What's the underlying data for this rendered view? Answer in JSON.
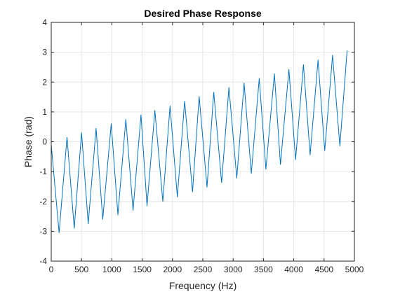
{
  "chart_data": {
    "type": "line",
    "title": "Desired Phase Response",
    "xlabel": "Frequency (Hz)",
    "ylabel": "Phase (rad)",
    "xlim": [
      0,
      5000
    ],
    "ylim": [
      -4,
      4
    ],
    "xticks": [
      0,
      500,
      1000,
      1500,
      2000,
      2500,
      3000,
      3500,
      4000,
      4500,
      5000
    ],
    "yticks": [
      -4,
      -3,
      -2,
      -1,
      0,
      1,
      2,
      3,
      4
    ],
    "grid": true,
    "line_color": "#0072BD",
    "series": [
      {
        "x": [
          0,
          130,
          260,
          380,
          500,
          610,
          740,
          850,
          990,
          1100,
          1230,
          1350,
          1480,
          1580,
          1710,
          1840,
          1960,
          2080,
          2200,
          2330,
          2440,
          2570,
          2680,
          2810,
          2930,
          3060,
          3180,
          3300,
          3430,
          3540,
          3680,
          3780,
          3920,
          4030,
          4160,
          4270,
          4400,
          4510,
          4640,
          4760,
          4880
        ],
        "y": [
          -0.1,
          -3.05,
          0.15,
          -2.9,
          0.3,
          -2.75,
          0.45,
          -2.6,
          0.6,
          -2.45,
          0.75,
          -2.3,
          0.9,
          -2.15,
          1.05,
          -2.0,
          1.2,
          -1.85,
          1.36,
          -1.68,
          1.52,
          -1.52,
          1.66,
          -1.37,
          1.82,
          -1.22,
          1.97,
          -1.06,
          2.12,
          -0.92,
          2.28,
          -0.76,
          2.42,
          -0.6,
          2.58,
          -0.44,
          2.74,
          -0.3,
          2.9,
          -0.14,
          3.06
        ]
      }
    ]
  }
}
